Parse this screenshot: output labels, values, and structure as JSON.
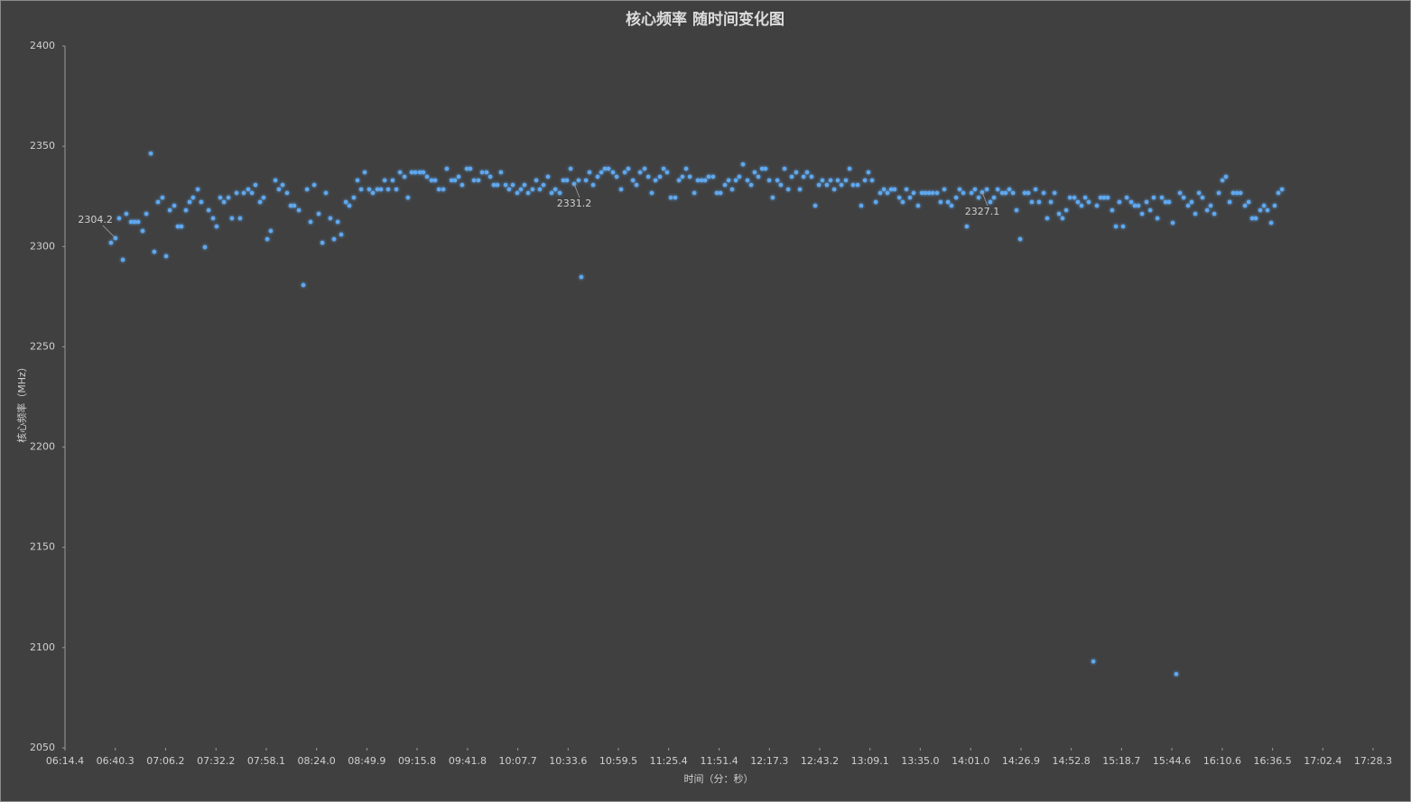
{
  "chart_data": {
    "type": "scatter",
    "title": "核心频率 随时间变化图",
    "x_label": "时间（分：秒）",
    "y_label": "核心频率（MHz）",
    "xlim": [
      374.4,
      1048.3
    ],
    "ylim": [
      2050,
      2400
    ],
    "yticks": [
      2050,
      2100,
      2150,
      2200,
      2250,
      2300,
      2350,
      2400
    ],
    "xticks": [
      {
        "value": 374.4,
        "label": "06:14.4"
      },
      {
        "value": 400.3,
        "label": "06:40.3"
      },
      {
        "value": 426.2,
        "label": "07:06.2"
      },
      {
        "value": 452.2,
        "label": "07:32.2"
      },
      {
        "value": 478.1,
        "label": "07:58.1"
      },
      {
        "value": 504.0,
        "label": "08:24.0"
      },
      {
        "value": 529.9,
        "label": "08:49.9"
      },
      {
        "value": 555.8,
        "label": "09:15.8"
      },
      {
        "value": 581.8,
        "label": "09:41.8"
      },
      {
        "value": 607.7,
        "label": "10:07.7"
      },
      {
        "value": 633.6,
        "label": "10:33.6"
      },
      {
        "value": 659.5,
        "label": "10:59.5"
      },
      {
        "value": 685.4,
        "label": "11:25.4"
      },
      {
        "value": 711.4,
        "label": "11:51.4"
      },
      {
        "value": 737.3,
        "label": "12:17.3"
      },
      {
        "value": 763.2,
        "label": "12:43.2"
      },
      {
        "value": 789.1,
        "label": "13:09.1"
      },
      {
        "value": 815.0,
        "label": "13:35.0"
      },
      {
        "value": 841.0,
        "label": "14:01.0"
      },
      {
        "value": 866.9,
        "label": "14:26.9"
      },
      {
        "value": 892.8,
        "label": "14:52.8"
      },
      {
        "value": 918.7,
        "label": "15:18.7"
      },
      {
        "value": 944.6,
        "label": "15:44.6"
      },
      {
        "value": 970.6,
        "label": "16:10.6"
      },
      {
        "value": 996.5,
        "label": "16:36.5"
      },
      {
        "value": 1022.4,
        "label": "17:02.4"
      },
      {
        "value": 1048.3,
        "label": "17:28.3"
      }
    ],
    "grid": false,
    "series": [
      {
        "color": "#5fa8ef",
        "x": [
          398.1,
          400.4,
          402.3,
          404.2,
          406.0,
          408.4,
          410.2,
          412.1,
          414.4,
          416.3,
          418.6,
          420.4,
          422.3,
          424.6,
          426.5,
          428.4,
          430.7,
          432.5,
          434.4,
          436.7,
          438.6,
          440.4,
          442.8,
          444.6,
          446.5,
          448.4,
          450.7,
          452.5,
          454.4,
          456.3,
          458.6,
          460.4,
          462.8,
          464.6,
          466.5,
          468.8,
          470.7,
          472.5,
          474.9,
          476.7,
          478.6,
          480.4,
          482.8,
          484.6,
          486.5,
          488.8,
          490.7,
          492.5,
          494.9,
          497.2,
          499.1,
          500.9,
          502.8,
          505.1,
          507.0,
          508.8,
          511.1,
          513.0,
          514.9,
          516.7,
          519.1,
          520.9,
          523.2,
          525.1,
          527.0,
          528.8,
          531.1,
          533.0,
          535.3,
          537.2,
          539.1,
          540.9,
          543.2,
          545.1,
          547.0,
          549.3,
          551.1,
          553.0,
          554.9,
          557.2,
          559.0,
          560.9,
          563.2,
          565.1,
          567.0,
          569.3,
          571.1,
          573.5,
          575.3,
          577.2,
          579.0,
          581.4,
          583.2,
          585.1,
          587.4,
          589.3,
          591.6,
          593.5,
          595.3,
          597.2,
          599.0,
          601.4,
          603.2,
          605.1,
          607.4,
          609.3,
          611.1,
          613.0,
          615.3,
          617.2,
          619.0,
          620.9,
          623.2,
          625.1,
          627.0,
          629.3,
          631.1,
          633.0,
          634.9,
          636.7,
          639.0,
          640.4,
          642.8,
          644.6,
          646.5,
          648.8,
          650.7,
          652.5,
          654.4,
          656.7,
          658.6,
          660.9,
          662.8,
          664.6,
          667.0,
          668.8,
          670.7,
          673.0,
          674.9,
          676.7,
          678.6,
          680.9,
          682.8,
          684.6,
          686.5,
          688.8,
          690.7,
          692.5,
          694.4,
          696.3,
          698.6,
          700.4,
          702.3,
          704.2,
          706.0,
          708.3,
          710.2,
          712.1,
          714.4,
          716.3,
          718.1,
          720.0,
          721.8,
          723.7,
          726.0,
          727.9,
          729.7,
          731.6,
          733.5,
          735.3,
          737.2,
          739.0,
          741.4,
          743.2,
          745.1,
          747.0,
          748.8,
          751.1,
          753.0,
          754.9,
          756.7,
          759.0,
          760.9,
          762.8,
          764.6,
          766.9,
          768.8,
          770.7,
          772.5,
          774.4,
          776.7,
          778.6,
          780.4,
          782.8,
          784.6,
          786.5,
          788.3,
          790.2,
          792.1,
          794.4,
          796.3,
          798.1,
          800.0,
          801.8,
          804.2,
          806.0,
          807.9,
          809.7,
          811.6,
          813.9,
          815.8,
          817.6,
          819.5,
          821.4,
          823.7,
          825.5,
          827.4,
          829.3,
          831.1,
          833.5,
          835.3,
          837.2,
          839.0,
          841.4,
          843.2,
          845.1,
          846.9,
          849.3,
          851.1,
          853.0,
          854.9,
          857.2,
          859.0,
          860.9,
          862.8,
          864.6,
          866.5,
          868.8,
          870.7,
          872.5,
          874.4,
          876.2,
          878.6,
          880.4,
          882.3,
          884.2,
          886.5,
          888.3,
          890.2,
          892.1,
          894.4,
          896.2,
          898.1,
          900.0,
          901.8,
          904.2,
          906.0,
          907.9,
          909.7,
          911.6,
          913.9,
          915.8,
          917.6,
          919.5,
          921.4,
          923.7,
          925.5,
          927.4,
          929.3,
          931.6,
          933.5,
          935.3,
          937.2,
          939.5,
          941.4,
          943.2,
          945.1,
          946.9,
          948.8,
          950.7,
          953.0,
          954.8,
          956.7,
          958.6,
          960.4,
          962.8,
          964.6,
          966.5,
          968.8,
          970.7,
          972.5,
          974.4,
          976.2,
          978.1,
          980.0,
          982.3,
          984.2,
          986.0,
          987.9,
          990.2,
          992.1,
          993.9,
          995.8,
          997.6,
          999.5,
          1001.4
        ],
        "values": [
          2301.9,
          2304.2,
          2314.1,
          2293.4,
          2316.3,
          2312.3,
          2312.3,
          2312.3,
          2307.8,
          2316.3,
          2346.4,
          2297.4,
          2322.2,
          2324.4,
          2295.2,
          2318.1,
          2320.4,
          2310.0,
          2310.0,
          2318.1,
          2322.2,
          2324.4,
          2328.5,
          2322.2,
          2299.7,
          2318.1,
          2314.1,
          2310.0,
          2324.4,
          2322.2,
          2324.4,
          2314.1,
          2326.7,
          2314.1,
          2326.7,
          2328.5,
          2326.7,
          2330.7,
          2322.2,
          2324.4,
          2303.7,
          2307.8,
          2333.0,
          2328.5,
          2330.7,
          2326.7,
          2320.4,
          2320.4,
          2318.1,
          2280.8,
          2328.5,
          2312.3,
          2330.7,
          2316.3,
          2301.9,
          2326.7,
          2314.1,
          2303.7,
          2312.3,
          2306.0,
          2322.2,
          2320.4,
          2324.4,
          2333.0,
          2328.5,
          2337.0,
          2328.5,
          2326.7,
          2328.5,
          2328.5,
          2333.0,
          2328.5,
          2333.0,
          2328.5,
          2337.0,
          2334.8,
          2324.4,
          2337.0,
          2337.0,
          2337.0,
          2337.0,
          2334.8,
          2333.0,
          2333.0,
          2328.5,
          2328.5,
          2338.8,
          2333.0,
          2333.0,
          2334.8,
          2330.7,
          2338.8,
          2338.8,
          2333.0,
          2333.0,
          2337.0,
          2337.0,
          2334.8,
          2330.7,
          2330.7,
          2337.0,
          2330.7,
          2328.5,
          2330.7,
          2326.7,
          2328.5,
          2330.7,
          2326.7,
          2328.5,
          2333.0,
          2328.5,
          2330.7,
          2334.8,
          2326.7,
          2328.5,
          2326.7,
          2333.0,
          2333.0,
          2338.8,
          2331.2,
          2333.0,
          2284.8,
          2333.0,
          2337.0,
          2330.7,
          2334.8,
          2337.0,
          2338.8,
          2338.8,
          2337.0,
          2334.8,
          2328.5,
          2337.0,
          2338.8,
          2333.0,
          2330.7,
          2337.0,
          2338.8,
          2334.8,
          2326.7,
          2333.0,
          2334.8,
          2338.8,
          2337.0,
          2324.4,
          2324.4,
          2333.0,
          2334.8,
          2338.8,
          2334.8,
          2326.7,
          2333.0,
          2333.0,
          2333.0,
          2334.8,
          2334.8,
          2326.7,
          2326.7,
          2330.7,
          2333.0,
          2328.5,
          2333.0,
          2334.8,
          2341.0,
          2333.0,
          2330.7,
          2337.0,
          2334.8,
          2338.8,
          2338.8,
          2333.0,
          2324.4,
          2333.0,
          2330.7,
          2338.8,
          2328.5,
          2334.8,
          2337.0,
          2328.5,
          2334.8,
          2337.0,
          2334.8,
          2320.4,
          2330.7,
          2333.0,
          2330.7,
          2333.0,
          2328.5,
          2333.0,
          2330.7,
          2333.0,
          2338.8,
          2330.7,
          2330.7,
          2320.4,
          2333.0,
          2337.0,
          2333.0,
          2322.2,
          2326.7,
          2328.5,
          2326.7,
          2328.5,
          2328.5,
          2324.4,
          2322.2,
          2328.5,
          2324.4,
          2326.7,
          2320.4,
          2326.7,
          2326.7,
          2326.7,
          2326.7,
          2326.7,
          2322.2,
          2328.5,
          2322.2,
          2320.4,
          2324.4,
          2328.5,
          2326.7,
          2310.0,
          2326.7,
          2328.5,
          2324.4,
          2327.1,
          2328.5,
          2322.2,
          2324.4,
          2328.5,
          2326.7,
          2326.7,
          2328.5,
          2326.7,
          2318.1,
          2303.7,
          2326.7,
          2326.7,
          2322.2,
          2328.5,
          2322.2,
          2326.7,
          2314.1,
          2322.2,
          2326.7,
          2316.3,
          2314.1,
          2318.1,
          2324.4,
          2324.4,
          2322.2,
          2320.4,
          2324.4,
          2322.2,
          2093.1,
          2320.4,
          2324.4,
          2324.4,
          2324.4,
          2318.1,
          2310.0,
          2322.2,
          2310.0,
          2324.4,
          2322.2,
          2320.4,
          2320.4,
          2316.3,
          2322.2,
          2318.1,
          2324.4,
          2314.1,
          2324.4,
          2322.2,
          2322.2,
          2311.8,
          2086.8,
          2326.7,
          2324.4,
          2320.4,
          2322.2,
          2316.3,
          2326.7,
          2324.4,
          2318.1,
          2320.4,
          2316.3,
          2326.7,
          2333.0,
          2334.8,
          2322.2,
          2326.7,
          2326.7,
          2326.7,
          2320.4,
          2322.2,
          2314.1,
          2314.1,
          2318.1,
          2320.4,
          2318.1,
          2311.8,
          2320.4,
          2326.7,
          2328.5
        ],
        "value_labels": [
          null,
          "2304.2",
          null,
          null,
          null,
          null,
          null,
          null,
          null,
          null,
          null,
          null,
          null,
          null,
          null,
          null,
          null,
          null,
          null,
          null,
          null,
          null,
          null,
          null,
          null,
          null,
          null,
          null,
          null,
          null,
          null,
          null,
          null,
          null,
          null,
          null,
          null,
          null,
          null,
          null,
          null,
          null,
          null,
          null,
          null,
          null,
          null,
          null,
          null,
          null,
          null,
          null,
          null,
          null,
          null,
          null,
          null,
          null,
          null,
          null,
          null,
          null,
          null,
          null,
          null,
          null,
          null,
          null,
          null,
          null,
          null,
          null,
          null,
          null,
          null,
          null,
          null,
          null,
          null,
          null,
          null,
          null,
          null,
          null,
          null,
          null,
          null,
          null,
          null,
          null,
          null,
          null,
          null,
          null,
          null,
          null,
          null,
          null,
          null,
          null,
          null,
          null,
          null,
          null,
          null,
          null,
          null,
          null,
          null,
          null,
          null,
          null,
          null,
          null,
          null,
          null,
          null,
          null,
          null,
          "2331.2",
          null,
          null,
          null,
          null,
          null,
          null,
          null,
          null,
          null,
          null,
          null,
          null,
          null,
          null,
          null,
          null,
          null,
          null,
          null,
          null,
          null,
          null,
          null,
          null,
          null,
          null,
          null,
          null,
          null,
          null,
          null,
          null,
          null,
          null,
          null,
          null,
          null,
          null,
          null,
          null,
          null,
          null,
          null,
          null,
          null,
          null,
          null,
          null,
          null,
          null,
          null,
          null,
          null,
          null,
          null,
          null,
          null,
          null,
          null,
          null,
          null,
          null,
          null,
          null,
          null,
          null,
          null,
          null,
          null,
          null,
          null,
          null,
          null,
          null,
          null,
          null,
          null,
          null,
          null,
          null,
          null,
          null,
          null,
          null,
          null,
          null,
          null,
          null,
          null,
          null,
          null,
          null,
          null,
          null,
          null,
          null,
          null,
          null,
          null,
          null,
          null,
          null,
          null,
          null,
          null,
          null,
          "2327.1",
          null,
          null,
          null,
          null,
          null,
          null,
          null,
          null,
          null,
          null,
          null,
          null,
          null,
          null,
          null,
          null,
          null,
          null,
          null,
          null,
          null,
          null,
          null,
          null,
          null,
          null,
          null,
          null,
          null,
          null,
          null,
          null,
          null,
          null,
          null,
          null,
          null,
          null,
          null,
          null,
          null,
          null,
          null,
          null,
          null,
          null,
          null,
          null,
          null,
          null,
          null,
          null,
          null,
          null,
          null,
          null,
          null,
          null,
          null,
          null,
          null,
          null,
          null,
          null,
          null,
          null,
          null,
          null,
          null,
          null,
          null,
          null,
          null,
          null,
          null,
          null,
          null,
          null,
          null
        ]
      }
    ]
  }
}
